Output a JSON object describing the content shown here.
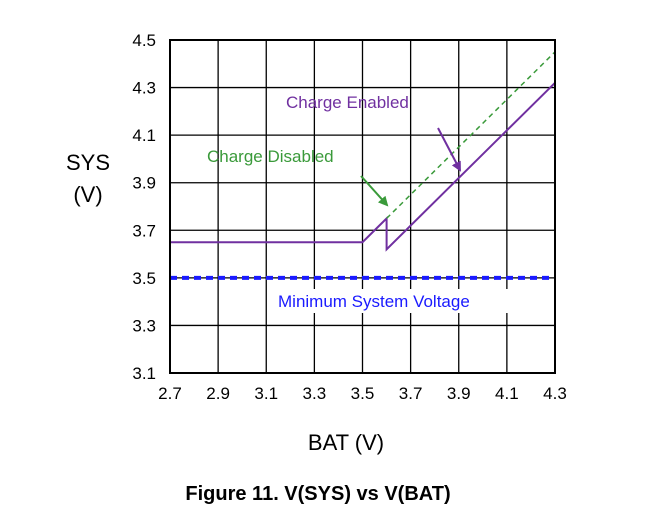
{
  "figure_caption": "Figure 11.  V(SYS) vs V(BAT)",
  "chart_data": {
    "type": "line",
    "xlabel": "BAT (V)",
    "ylabel_line1": "SYS",
    "ylabel_line2": "(V)",
    "xlim": [
      2.7,
      4.3
    ],
    "ylim": [
      3.1,
      4.5
    ],
    "x_ticks": [
      "2.7",
      "2.9",
      "3.1",
      "3.3",
      "3.5",
      "3.7",
      "3.9",
      "4.1",
      "4.3"
    ],
    "y_ticks": [
      "4.5",
      "4.3",
      "4.1",
      "3.9",
      "3.7",
      "3.5",
      "3.3",
      "3.1"
    ],
    "grid": true,
    "colors": {
      "charge_enabled": "#7030a0",
      "charge_disabled": "#3a9a3a",
      "minimum_system_voltage": "#1a1aff"
    },
    "series": [
      {
        "name": "Charge Enabled",
        "x": [
          2.7,
          3.5,
          3.6,
          3.6,
          4.3
        ],
        "y": [
          3.65,
          3.65,
          3.75,
          3.62,
          4.32
        ]
      },
      {
        "name": "Charge Disabled",
        "x": [
          3.6,
          4.3
        ],
        "y": [
          3.75,
          4.45
        ]
      },
      {
        "name": "Minimum System Voltage",
        "x": [
          2.7,
          4.3
        ],
        "y": [
          3.5,
          3.5
        ]
      }
    ],
    "annotations": {
      "charge_enabled": "Charge Enabled",
      "charge_disabled": "Charge Disabled",
      "minimum_system_voltage": "Minimum System Voltage"
    }
  }
}
